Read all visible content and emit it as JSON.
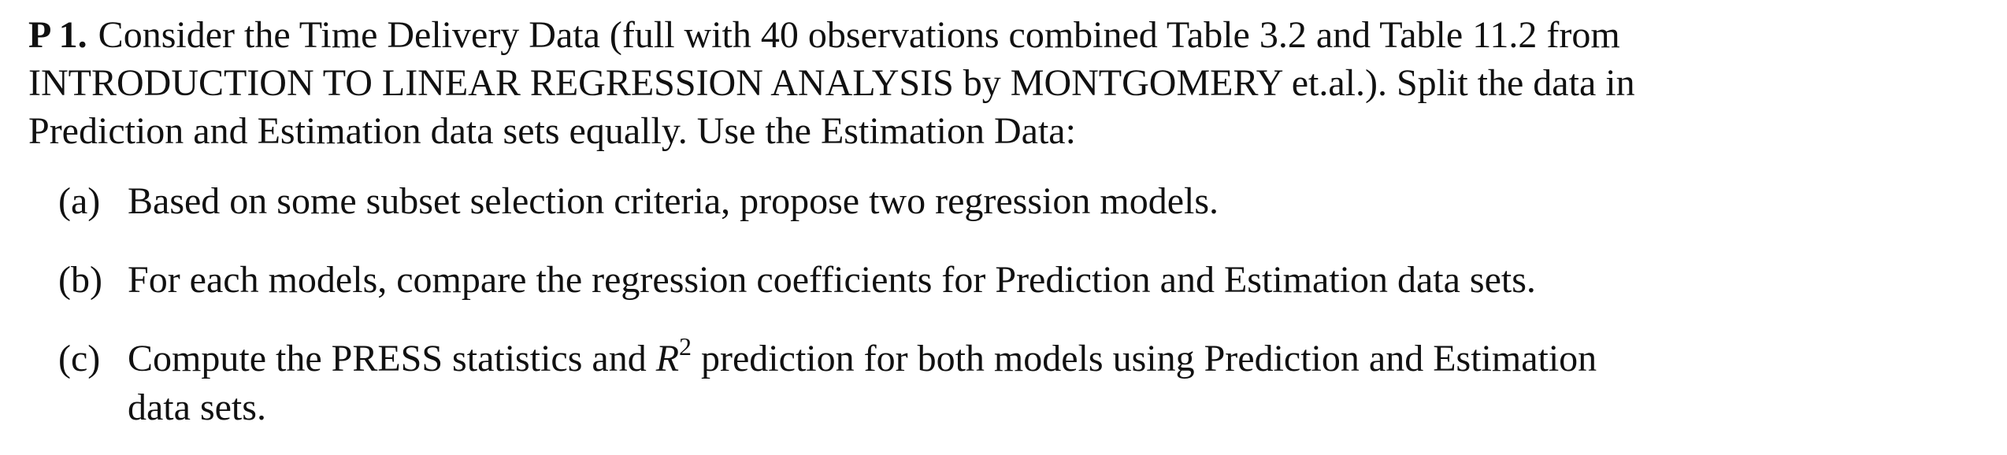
{
  "problem": {
    "label": "P 1.",
    "intro_line_1": "Consider the Time Delivery Data (full with 40 observations combined Table 3.2 and Table 11.2 from",
    "intro_line_2": "INTRODUCTION TO LINEAR REGRESSION ANALYSIS by MONTGOMERY et.al.). Split the data in",
    "intro_line_3": "Prediction and Estimation data sets equally. Use the Estimation Data:"
  },
  "items": [
    {
      "marker": "(a)",
      "text": "Based on some subset selection criteria, propose two regression models."
    },
    {
      "marker": "(b)",
      "text": "For each models, compare the regression coefficients for Prediction and Estimation data sets."
    },
    {
      "marker": "(c)",
      "text_before": "Compute the PRESS statistics and",
      "math_symbol": "R",
      "math_superscript": "2",
      "text_after": "prediction for both models using Prediction and Estimation",
      "text_line_2": "data sets."
    }
  ]
}
